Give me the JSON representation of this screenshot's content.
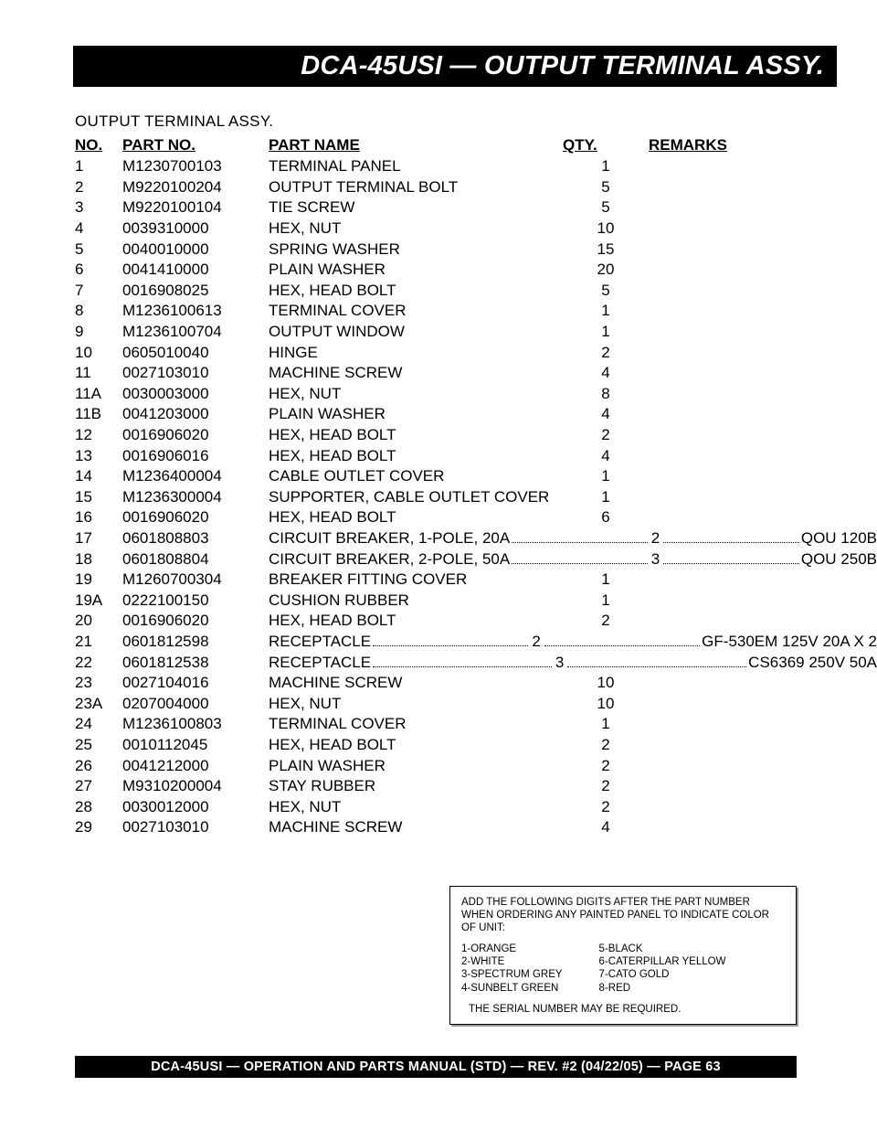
{
  "header": {
    "title": "DCA-45USI — OUTPUT TERMINAL ASSY."
  },
  "section_title": "OUTPUT TERMINAL ASSY.",
  "columns": {
    "no": "NO.",
    "partno": "PART NO.",
    "name": "PART NAME",
    "qty": "QTY.",
    "remarks": "REMARKS"
  },
  "rows": [
    {
      "no": "1",
      "pn": "M1230700103",
      "name": "TERMINAL PANEL",
      "qty": "1",
      "rem": ""
    },
    {
      "no": "2",
      "pn": "M9220100204",
      "name": "OUTPUT TERMINAL BOLT",
      "qty": "5",
      "rem": ""
    },
    {
      "no": "3",
      "pn": "M9220100104",
      "name": "TIE SCREW",
      "qty": "5",
      "rem": ""
    },
    {
      "no": "4",
      "pn": "0039310000",
      "name": "HEX, NUT",
      "qty": "10",
      "rem": ""
    },
    {
      "no": "5",
      "pn": "0040010000",
      "name": "SPRING WASHER",
      "qty": "15",
      "rem": ""
    },
    {
      "no": "6",
      "pn": "0041410000",
      "name": "PLAIN WASHER",
      "qty": "20",
      "rem": ""
    },
    {
      "no": "7",
      "pn": "0016908025",
      "name": "HEX, HEAD BOLT",
      "qty": "5",
      "rem": ""
    },
    {
      "no": "8",
      "pn": "M1236100613",
      "name": "TERMINAL COVER",
      "qty": "1",
      "rem": ""
    },
    {
      "no": "9",
      "pn": "M1236100704",
      "name": "OUTPUT WINDOW",
      "qty": "1",
      "rem": ""
    },
    {
      "no": "10",
      "pn": "0605010040",
      "name": "HINGE",
      "qty": "2",
      "rem": ""
    },
    {
      "no": "11",
      "pn": "0027103010",
      "name": "MACHINE SCREW",
      "qty": "4",
      "rem": ""
    },
    {
      "no": "11A",
      "pn": "0030003000",
      "name": "HEX, NUT",
      "qty": "8",
      "rem": ""
    },
    {
      "no": "11B",
      "pn": "0041203000",
      "name": "PLAIN WASHER",
      "qty": "4",
      "rem": ""
    },
    {
      "no": "12",
      "pn": "0016906020",
      "name": "HEX, HEAD BOLT",
      "qty": "2",
      "rem": ""
    },
    {
      "no": "13",
      "pn": "0016906016",
      "name": "HEX, HEAD BOLT",
      "qty": "4",
      "rem": ""
    },
    {
      "no": "14",
      "pn": "M1236400004",
      "name": "CABLE OUTLET COVER",
      "qty": "1",
      "rem": ""
    },
    {
      "no": "15",
      "pn": "M1236300004",
      "name": "SUPPORTER, CABLE OUTLET COVER",
      "qty": "1",
      "rem": ""
    },
    {
      "no": "16",
      "pn": "0016906020",
      "name": "HEX, HEAD BOLT",
      "qty": "6",
      "rem": ""
    },
    {
      "no": "17",
      "pn": "0601808803",
      "name": "CIRCUIT BREAKER, 1-POLE, 20A",
      "qty": "2",
      "rem": "QOU 120B",
      "dotted": true
    },
    {
      "no": "18",
      "pn": "0601808804",
      "name": "CIRCUIT BREAKER, 2-POLE, 50A",
      "qty": "3",
      "rem": "QOU 250B",
      "dotted": true
    },
    {
      "no": "19",
      "pn": "M1260700304",
      "name": "BREAKER FITTING COVER",
      "qty": "1",
      "rem": ""
    },
    {
      "no": "19A",
      "pn": "0222100150",
      "name": "CUSHION RUBBER",
      "qty": "1",
      "rem": ""
    },
    {
      "no": "20",
      "pn": "0016906020",
      "name": "HEX, HEAD BOLT",
      "qty": "2",
      "rem": ""
    },
    {
      "no": "21",
      "pn": "0601812598",
      "name": "RECEPTACLE",
      "qty": "2",
      "rem": "GF-530EM 125V 20A X 2",
      "dotted": true
    },
    {
      "no": "22",
      "pn": "0601812538",
      "name": "RECEPTACLE",
      "qty": "3",
      "rem": "CS6369 250V 50A",
      "dotted": true
    },
    {
      "no": "23",
      "pn": "0027104016",
      "name": "MACHINE SCREW",
      "qty": "10",
      "rem": ""
    },
    {
      "no": "23A",
      "pn": "0207004000",
      "name": "HEX, NUT",
      "qty": "10",
      "rem": ""
    },
    {
      "no": "24",
      "pn": "M1236100803",
      "name": "TERMINAL COVER",
      "qty": "1",
      "rem": ""
    },
    {
      "no": "25",
      "pn": "0010112045",
      "name": "HEX, HEAD BOLT",
      "qty": "2",
      "rem": ""
    },
    {
      "no": "26",
      "pn": "0041212000",
      "name": "PLAIN WASHER",
      "qty": "2",
      "rem": ""
    },
    {
      "no": "27",
      "pn": "M9310200004",
      "name": "STAY RUBBER",
      "qty": "2",
      "rem": ""
    },
    {
      "no": "28",
      "pn": "0030012000",
      "name": "HEX, NUT",
      "qty": "2",
      "rem": ""
    },
    {
      "no": "29",
      "pn": "0027103010",
      "name": "MACHINE SCREW",
      "qty": "4",
      "rem": ""
    }
  ],
  "color_box": {
    "instruction": "ADD THE FOLLOWING DIGITS AFTER THE PART NUMBER WHEN ORDERING ANY PAINTED PANEL TO INDICATE COLOR OF UNIT:",
    "left": [
      "1-ORANGE",
      "2-WHITE",
      "3-SPECTRUM GREY",
      "4-SUNBELT GREEN"
    ],
    "right": [
      "5-BLACK",
      "6-CATERPILLAR YELLOW",
      "7-CATO GOLD",
      "8-RED"
    ],
    "serial_note": "THE SERIAL NUMBER MAY BE REQUIRED."
  },
  "footer": "DCA-45USI — OPERATION AND PARTS MANUAL (STD) — REV. #2  (04/22/05) — PAGE 63"
}
